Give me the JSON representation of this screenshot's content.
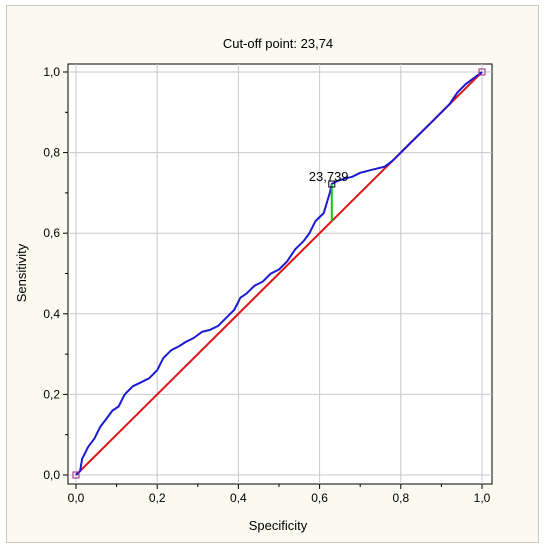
{
  "chart_data": {
    "type": "line",
    "title": "Cut-off point: 23,74",
    "xlabel": "Specificity",
    "ylabel": "Sensitivity",
    "xlim": [
      0,
      1
    ],
    "ylim": [
      0,
      1
    ],
    "grid": true,
    "x_ticks": [
      "0,0",
      "0,2",
      "0,4",
      "0,6",
      "0,8",
      "1,0"
    ],
    "y_ticks": [
      "0,0",
      "0,2",
      "0,4",
      "0,6",
      "0,8",
      "1,0"
    ],
    "series": [
      {
        "color": "#1a1ad4",
        "points": [
          [
            0.0,
            0.0
          ],
          [
            0.01,
            0.01
          ],
          [
            0.015,
            0.04
          ],
          [
            0.03,
            0.07
          ],
          [
            0.045,
            0.09
          ],
          [
            0.06,
            0.12
          ],
          [
            0.075,
            0.14
          ],
          [
            0.09,
            0.16
          ],
          [
            0.105,
            0.17
          ],
          [
            0.12,
            0.2
          ],
          [
            0.14,
            0.22
          ],
          [
            0.16,
            0.23
          ],
          [
            0.18,
            0.24
          ],
          [
            0.2,
            0.26
          ],
          [
            0.215,
            0.29
          ],
          [
            0.235,
            0.31
          ],
          [
            0.255,
            0.32
          ],
          [
            0.27,
            0.33
          ],
          [
            0.29,
            0.34
          ],
          [
            0.31,
            0.355
          ],
          [
            0.33,
            0.36
          ],
          [
            0.35,
            0.37
          ],
          [
            0.37,
            0.39
          ],
          [
            0.39,
            0.41
          ],
          [
            0.405,
            0.44
          ],
          [
            0.42,
            0.45
          ],
          [
            0.44,
            0.47
          ],
          [
            0.46,
            0.48
          ],
          [
            0.48,
            0.5
          ],
          [
            0.5,
            0.51
          ],
          [
            0.52,
            0.53
          ],
          [
            0.54,
            0.56
          ],
          [
            0.56,
            0.58
          ],
          [
            0.575,
            0.6
          ],
          [
            0.59,
            0.63
          ],
          [
            0.61,
            0.65
          ],
          [
            0.625,
            0.7
          ],
          [
            0.63,
            0.722
          ],
          [
            0.645,
            0.73
          ],
          [
            0.66,
            0.735
          ],
          [
            0.68,
            0.74
          ],
          [
            0.7,
            0.75
          ],
          [
            0.72,
            0.755
          ],
          [
            0.74,
            0.76
          ],
          [
            0.76,
            0.765
          ],
          [
            0.78,
            0.78
          ],
          [
            0.8,
            0.8
          ],
          [
            0.82,
            0.82
          ],
          [
            0.84,
            0.84
          ],
          [
            0.86,
            0.86
          ],
          [
            0.88,
            0.88
          ],
          [
            0.9,
            0.9
          ],
          [
            0.92,
            0.92
          ],
          [
            0.94,
            0.95
          ],
          [
            0.96,
            0.97
          ],
          [
            0.98,
            0.985
          ],
          [
            1.0,
            1.0
          ]
        ]
      },
      {
        "color": "#e01414",
        "points": [
          [
            0,
            0
          ],
          [
            1,
            1
          ]
        ]
      }
    ],
    "cutoff": {
      "x": 0.63,
      "y_low": 0.63,
      "y_high": 0.722,
      "label": "23,739",
      "line_color": "#11c811"
    }
  }
}
